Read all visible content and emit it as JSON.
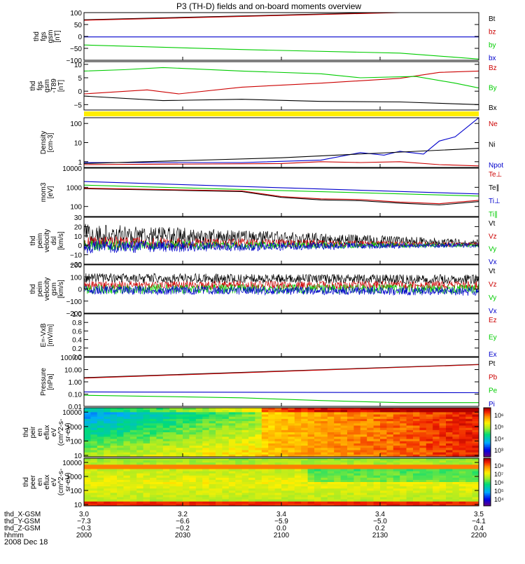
{
  "title": "P3 (TH-D) fields and on-board moments overview",
  "colors": {
    "black": "#000000",
    "red": "#cc0000",
    "green": "#00cc00",
    "blue": "#0000cc",
    "yellow": "#ffee00"
  },
  "chart_data": [
    {
      "type": "line",
      "ylabel": [
        "thd",
        "fgs",
        "gsm",
        "[nT]"
      ],
      "ylim": [
        -100,
        100
      ],
      "yscale": "linear",
      "yticks": [
        "100",
        "50",
        "0",
        "−50",
        "−100"
      ],
      "legend": [
        {
          "name": "Bt",
          "color": "black"
        },
        {
          "name": "bz",
          "color": "red"
        },
        {
          "name": "by",
          "color": "green"
        },
        {
          "name": "bx",
          "color": "blue"
        }
      ],
      "series": [
        {
          "name": "Bt",
          "color": "black",
          "x": [
            3.0,
            3.5
          ],
          "y": [
            70,
            110
          ]
        },
        {
          "name": "bz",
          "color": "red",
          "x": [
            3.0,
            3.25,
            3.4
          ],
          "y": [
            68,
            88,
            100
          ]
        },
        {
          "name": "by",
          "color": "green",
          "x": [
            3.0,
            3.2,
            3.4,
            3.5
          ],
          "y": [
            -36,
            -55,
            -70,
            -95
          ]
        },
        {
          "name": "bx",
          "color": "blue",
          "x": [
            3.0,
            3.5
          ],
          "y": [
            -2,
            -2
          ]
        }
      ]
    },
    {
      "type": "line",
      "ylabel": [
        "thd",
        "fgs",
        "gsm",
        "-T89",
        "[nT]"
      ],
      "ylim": [
        -7,
        11
      ],
      "yscale": "linear",
      "yticks": [
        "10",
        "5",
        "0",
        "−5"
      ],
      "legend": [
        {
          "name": "Bz",
          "color": "red"
        },
        {
          "name": "By",
          "color": "green"
        },
        {
          "name": "Bx",
          "color": "black"
        }
      ],
      "series": [
        {
          "name": "Bz",
          "color": "red",
          "x": [
            3.0,
            3.08,
            3.12,
            3.2,
            3.3,
            3.4,
            3.45,
            3.5
          ],
          "y": [
            -1,
            0.5,
            -1,
            1.5,
            3,
            4.8,
            7,
            7.5
          ]
        },
        {
          "name": "By",
          "color": "green",
          "x": [
            3.0,
            3.05,
            3.1,
            3.2,
            3.3,
            3.35,
            3.42,
            3.47,
            3.5
          ],
          "y": [
            7.5,
            8,
            8.8,
            7.5,
            6.5,
            5,
            5.5,
            3,
            1.2
          ]
        },
        {
          "name": "Bx",
          "color": "black",
          "x": [
            3.0,
            3.1,
            3.2,
            3.3,
            3.4,
            3.5
          ],
          "y": [
            -1.8,
            -3.5,
            -3,
            -3.8,
            -4,
            -5
          ]
        }
      ]
    },
    {
      "type": "line",
      "ylabel": [
        "Density",
        "[cm-3]"
      ],
      "ylim": [
        0.5,
        200
      ],
      "yscale": "log",
      "yticks": [
        "100",
        "10",
        "1"
      ],
      "legend": [
        {
          "name": "Ne",
          "color": "red"
        },
        {
          "name": "Ni",
          "color": "black"
        },
        {
          "name": "Npot",
          "color": "blue"
        }
      ],
      "series": [
        {
          "name": "Npot",
          "color": "blue",
          "x": [
            3.0,
            3.2,
            3.3,
            3.35,
            3.38,
            3.4,
            3.43,
            3.45,
            3.47,
            3.5
          ],
          "y": [
            0.9,
            0.9,
            1.2,
            3,
            2.2,
            3.5,
            2.5,
            12,
            20,
            200
          ]
        },
        {
          "name": "Ni",
          "color": "black",
          "x": [
            3.0,
            3.25,
            3.5
          ],
          "y": [
            0.8,
            1.6,
            5
          ]
        },
        {
          "name": "Ne",
          "color": "red",
          "x": [
            3.0,
            3.25,
            3.3,
            3.35,
            3.4,
            3.45,
            3.5
          ],
          "y": [
            0.7,
            0.8,
            1.0,
            0.9,
            1.0,
            0.7,
            0.6
          ]
        }
      ]
    },
    {
      "type": "line",
      "ylabel": [
        "mom3",
        "[eV]"
      ],
      "ylim": [
        30,
        10000
      ],
      "yscale": "log",
      "yticks": [
        "10000",
        "1000",
        "100"
      ],
      "legend": [
        {
          "name": "Te⊥",
          "color": "red"
        },
        {
          "name": "Te∥",
          "color": "black"
        },
        {
          "name": "Ti⊥",
          "color": "blue"
        },
        {
          "name": "Ti∥",
          "color": "green"
        }
      ],
      "series": [
        {
          "name": "Ti⊥",
          "color": "blue",
          "x": [
            3.0,
            3.5
          ],
          "y": [
            2000,
            450
          ]
        },
        {
          "name": "Ti∥",
          "color": "green",
          "x": [
            3.0,
            3.5
          ],
          "y": [
            1300,
            350
          ]
        },
        {
          "name": "Te∥",
          "color": "black",
          "x": [
            3.0,
            3.2,
            3.25,
            3.3,
            3.35,
            3.4,
            3.45,
            3.5
          ],
          "y": [
            850,
            600,
            300,
            220,
            200,
            150,
            120,
            180
          ]
        },
        {
          "name": "Te⊥",
          "color": "red",
          "x": [
            3.0,
            3.2,
            3.25,
            3.3,
            3.35,
            3.4,
            3.45,
            3.5
          ],
          "y": [
            900,
            650,
            330,
            250,
            230,
            170,
            140,
            210
          ]
        }
      ]
    },
    {
      "type": "line",
      "ylabel": [
        "thd",
        "peim",
        "velocity",
        "dsl",
        "[km/s]"
      ],
      "ylim": [
        -20,
        30
      ],
      "yscale": "linear",
      "yticks": [
        "30",
        "20",
        "10",
        "0",
        "−10",
        "−20"
      ],
      "legend": [
        {
          "name": "Vt",
          "color": "black"
        },
        {
          "name": "Vz",
          "color": "red"
        },
        {
          "name": "Vy",
          "color": "green"
        },
        {
          "name": "Vx",
          "color": "blue"
        }
      ],
      "series": [
        {
          "name": "Vt",
          "color": "black",
          "noisy": true,
          "x": [
            3.0,
            3.5
          ],
          "y": [
            12,
            3
          ]
        },
        {
          "name": "Vz",
          "color": "red",
          "noisy": true,
          "x": [
            3.0,
            3.5
          ],
          "y": [
            3,
            1
          ]
        },
        {
          "name": "Vy",
          "color": "green",
          "noisy": true,
          "x": [
            3.0,
            3.5
          ],
          "y": [
            0,
            0
          ]
        },
        {
          "name": "Vx",
          "color": "blue",
          "noisy": true,
          "x": [
            3.0,
            3.5
          ],
          "y": [
            -2,
            0
          ]
        }
      ]
    },
    {
      "type": "line",
      "ylabel": [
        "thd",
        "peim",
        "velocity",
        "gsm",
        "[km/s]"
      ],
      "ylim": [
        -200,
        200
      ],
      "yscale": "linear",
      "yticks": [
        "200",
        "100",
        "0",
        "−100",
        "−200"
      ],
      "legend": [
        {
          "name": "Vt",
          "color": "black"
        },
        {
          "name": "Vz",
          "color": "red"
        },
        {
          "name": "Vy",
          "color": "green"
        },
        {
          "name": "Vx",
          "color": "blue"
        }
      ],
      "series": [
        {
          "name": "Vt",
          "color": "black",
          "noisy": true,
          "x": [
            3.0,
            3.5
          ],
          "y": [
            90,
            80
          ]
        },
        {
          "name": "Vz",
          "color": "red",
          "noisy": true,
          "x": [
            3.0,
            3.5
          ],
          "y": [
            30,
            30
          ]
        },
        {
          "name": "Vy",
          "color": "green",
          "noisy": true,
          "x": [
            3.0,
            3.5
          ],
          "y": [
            0,
            0
          ]
        },
        {
          "name": "Vx",
          "color": "blue",
          "noisy": true,
          "x": [
            3.0,
            3.5
          ],
          "y": [
            -10,
            -20
          ]
        }
      ]
    },
    {
      "type": "line",
      "ylabel": [
        "E=-VxB",
        "[mV/m]"
      ],
      "ylim": [
        0,
        1
      ],
      "yscale": "linear",
      "yticks": [
        "1.0",
        "0.8",
        "0.6",
        "0.4",
        "0.2",
        "0.0"
      ],
      "legend": [
        {
          "name": "Ez",
          "color": "red"
        },
        {
          "name": "Ey",
          "color": "green"
        },
        {
          "name": "Ex",
          "color": "blue"
        }
      ],
      "series": []
    },
    {
      "type": "line",
      "ylabel": [
        "Pressure",
        "[nPa]"
      ],
      "ylim": [
        0.01,
        100
      ],
      "yscale": "log",
      "yticks": [
        "100.00",
        "10.00",
        "1.00",
        "0.10",
        "0.01"
      ],
      "legend": [
        {
          "name": "Pt",
          "color": "black"
        },
        {
          "name": "Pb",
          "color": "red"
        },
        {
          "name": "Pe",
          "color": "green"
        },
        {
          "name": "Pi",
          "color": "blue"
        }
      ],
      "series": [
        {
          "name": "Pt",
          "color": "black",
          "x": [
            3.0,
            3.5
          ],
          "y": [
            2.2,
            26
          ]
        },
        {
          "name": "Pb",
          "color": "red",
          "x": [
            3.0,
            3.5
          ],
          "y": [
            2.0,
            25
          ]
        },
        {
          "name": "Pi",
          "color": "blue",
          "x": [
            3.0,
            3.5
          ],
          "y": [
            0.15,
            0.13
          ]
        },
        {
          "name": "Pe",
          "color": "green",
          "x": [
            3.0,
            3.2,
            3.3,
            3.4,
            3.5
          ],
          "y": [
            0.08,
            0.05,
            0.03,
            0.02,
            0.02
          ]
        }
      ]
    },
    {
      "type": "heatmap",
      "ylabel": [
        "thd",
        "peir",
        "en",
        "eflux",
        "eV",
        "(cm^2-s-",
        "sr-eV)"
      ],
      "ylim": [
        8,
        20000
      ],
      "yscale": "log",
      "yticks": [
        "10000",
        "1000",
        "100",
        "10"
      ],
      "colorbar": {
        "ticks": [
          "10⁶",
          "10⁵",
          "10⁴",
          "10³"
        ],
        "range": [
          3,
          6.5
        ]
      }
    },
    {
      "type": "heatmap",
      "ylabel": [
        "thd",
        "peer",
        "en",
        "eflux",
        "eV",
        "(cm^2-s-",
        "sr-eV)"
      ],
      "ylim": [
        8,
        20000
      ],
      "yscale": "log",
      "yticks": [
        "10000",
        "1000",
        "100",
        "10"
      ],
      "colorbar": {
        "ticks": [
          "10⁸",
          "10⁷",
          "10⁶",
          "10⁵",
          "10⁴"
        ],
        "range": [
          3.5,
          8.2
        ]
      }
    }
  ],
  "xaxis": {
    "ticks": [
      {
        "x": 3.0,
        "vals": [
          "3.0",
          "−7.3",
          "−0.3",
          "2000"
        ]
      },
      {
        "x": 3.125,
        "vals": [
          "3.2",
          "−6.6",
          "−0.2",
          "2030"
        ]
      },
      {
        "x": 3.25,
        "vals": [
          "3.4",
          "−5.9",
          "0.0",
          "2100"
        ]
      },
      {
        "x": 3.375,
        "vals": [
          "3.4",
          "−5.0",
          "0.2",
          "2130"
        ]
      },
      {
        "x": 3.5,
        "vals": [
          "3.5",
          "−4.1",
          "0.4",
          "2200"
        ]
      }
    ],
    "row_labels": [
      "thd_X-GSM",
      "thd_Y-GSM",
      "thd_Z-GSM",
      "hhmm"
    ],
    "date": "2008 Dec 18"
  }
}
